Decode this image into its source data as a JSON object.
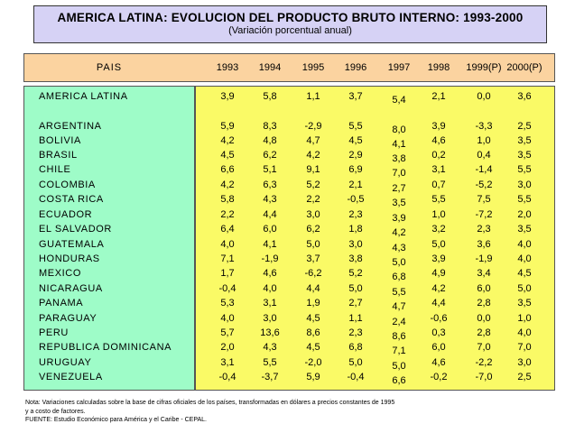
{
  "title": {
    "main": "AMERICA LATINA: EVOLUCION DEL PRODUCTO BRUTO INTERNO: 1993-2000",
    "sub": "(Variación porcentual anual)"
  },
  "chart_data": {
    "type": "table",
    "columns": [
      "PAIS",
      "1993",
      "1994",
      "1995",
      "1996",
      "1997",
      "1998",
      "1999(P)",
      "2000(P)"
    ],
    "rows": [
      {
        "pais": "AMERICA LATINA",
        "values": [
          "3,9",
          "5,8",
          "1,1",
          "3,7",
          "5,4",
          "2,1",
          "0,0",
          "3,6"
        ]
      },
      {
        "pais": "ARGENTINA",
        "values": [
          "5,9",
          "8,3",
          "-2,9",
          "5,5",
          "8,0",
          "3,9",
          "-3,3",
          "2,5"
        ]
      },
      {
        "pais": "BOLIVIA",
        "values": [
          "4,2",
          "4,8",
          "4,7",
          "4,5",
          "4,1",
          "4,6",
          "1,0",
          "3,5"
        ]
      },
      {
        "pais": "BRASIL",
        "values": [
          "4,5",
          "6,2",
          "4,2",
          "2,9",
          "3,8",
          "0,2",
          "0,4",
          "3,5"
        ]
      },
      {
        "pais": "CHILE",
        "values": [
          "6,6",
          "5,1",
          "9,1",
          "6,9",
          "7,0",
          "3,1",
          "-1,4",
          "5,5"
        ]
      },
      {
        "pais": "COLOMBIA",
        "values": [
          "4,2",
          "6,3",
          "5,2",
          "2,1",
          "2,7",
          "0,7",
          "-5,2",
          "3,0"
        ]
      },
      {
        "pais": "COSTA RICA",
        "values": [
          "5,8",
          "4,3",
          "2,2",
          "-0,5",
          "3,5",
          "5,5",
          "7,5",
          "5,5"
        ]
      },
      {
        "pais": "ECUADOR",
        "values": [
          "2,2",
          "4,4",
          "3,0",
          "2,3",
          "3,9",
          "1,0",
          "-7,2",
          "2,0"
        ]
      },
      {
        "pais": "EL SALVADOR",
        "values": [
          "6,4",
          "6,0",
          "6,2",
          "1,8",
          "4,2",
          "3,2",
          "2,3",
          "3,5"
        ]
      },
      {
        "pais": "GUATEMALA",
        "values": [
          "4,0",
          "4,1",
          "5,0",
          "3,0",
          "4,3",
          "5,0",
          "3,6",
          "4,0"
        ]
      },
      {
        "pais": "HONDURAS",
        "values": [
          "7,1",
          "-1,9",
          "3,7",
          "3,8",
          "5,0",
          "3,9",
          "-1,9",
          "4,0"
        ]
      },
      {
        "pais": "MEXICO",
        "values": [
          "1,7",
          "4,6",
          "-6,2",
          "5,2",
          "6,8",
          "4,9",
          "3,4",
          "4,5"
        ]
      },
      {
        "pais": "NICARAGUA",
        "values": [
          "-0,4",
          "4,0",
          "4,4",
          "5,0",
          "5,5",
          "4,2",
          "6,0",
          "5,0"
        ]
      },
      {
        "pais": "PANAMA",
        "values": [
          "5,3",
          "3,1",
          "1,9",
          "2,7",
          "4,7",
          "4,4",
          "2,8",
          "3,5"
        ]
      },
      {
        "pais": "PARAGUAY",
        "values": [
          "4,0",
          "3,0",
          "4,5",
          "1,1",
          "2,4",
          "-0,6",
          "0,0",
          "1,0"
        ]
      },
      {
        "pais": "PERU",
        "values": [
          "5,7",
          "13,6",
          "8,6",
          "2,3",
          "8,6",
          "0,3",
          "2,8",
          "4,0"
        ]
      },
      {
        "pais": "REPUBLICA DOMINICANA",
        "values": [
          "2,0",
          "4,3",
          "4,5",
          "6,8",
          "7,1",
          "6,0",
          "7,0",
          "7,0"
        ]
      },
      {
        "pais": "URUGUAY",
        "values": [
          "3,1",
          "5,5",
          "-2,0",
          "5,0",
          "5,0",
          "4,6",
          "-2,2",
          "3,0"
        ]
      },
      {
        "pais": "VENEZUELA",
        "values": [
          "-0,4",
          "-3,7",
          "5,9",
          "-0,4",
          "6,6",
          "-0,2",
          "-7,0",
          "2,5"
        ]
      }
    ]
  },
  "notes": {
    "line1": "Nota: Variaciones calculadas sobre la base de cifras oficiales de los países, transformadas en dólares a precios constantes de 1995",
    "line2": "y a costo de factores.",
    "line3": "FUENTE: Estudio Económico para América y el Caribe - CEPAL."
  },
  "colors": {
    "title_bg": "#d6d2f5",
    "header_bg": "#fbd3a0",
    "country_bg": "#9efcc8",
    "values_bg": "#fafa66"
  }
}
